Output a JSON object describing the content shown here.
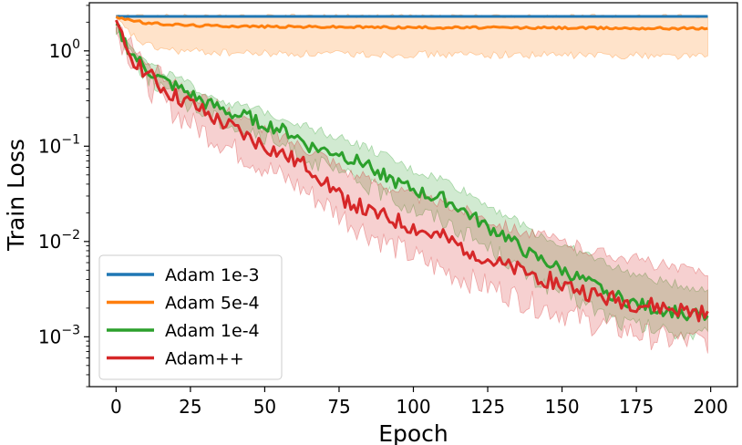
{
  "chart_data": {
    "type": "line",
    "title": "",
    "xlabel": "Epoch",
    "ylabel": "Train Loss",
    "xlim": [
      -9,
      209
    ],
    "ylim": [
      0.0003,
      3.2
    ],
    "yscale": "log",
    "grid": false,
    "legend_position": "lower-left",
    "x_ticks": [
      0,
      25,
      50,
      75,
      100,
      125,
      150,
      175,
      200
    ],
    "y_ticks": [
      {
        "value": 1,
        "base": "10",
        "exp": "0"
      },
      {
        "value": 0.1,
        "base": "10",
        "exp": "−1"
      },
      {
        "value": 0.01,
        "base": "10",
        "exp": "−2"
      },
      {
        "value": 0.001,
        "base": "10",
        "exp": "−3"
      }
    ],
    "series": [
      {
        "name": "Adam 1e-3",
        "color": "#1f77b4",
        "points": [
          [
            0,
            2.3
          ],
          [
            199,
            2.3
          ]
        ],
        "band_low": [
          [
            0,
            2.28
          ],
          [
            199,
            2.28
          ]
        ],
        "band_high": [
          [
            0,
            2.32
          ],
          [
            199,
            2.32
          ]
        ]
      },
      {
        "name": "Adam 5e-4",
        "color": "#ff7f0e",
        "points": [
          [
            0,
            2.28
          ],
          [
            10,
            1.95
          ],
          [
            25,
            1.85
          ],
          [
            50,
            1.8
          ],
          [
            75,
            1.78
          ],
          [
            100,
            1.76
          ],
          [
            125,
            1.75
          ],
          [
            150,
            1.74
          ],
          [
            175,
            1.73
          ],
          [
            199,
            1.72
          ]
        ],
        "band_low": [
          [
            0,
            2.15
          ],
          [
            4,
            1.6
          ],
          [
            8,
            1.25
          ],
          [
            12,
            1.1
          ],
          [
            20,
            1.0
          ],
          [
            40,
            0.95
          ],
          [
            60,
            0.93
          ],
          [
            100,
            0.92
          ],
          [
            150,
            0.9
          ],
          [
            175,
            0.9
          ],
          [
            199,
            0.88
          ]
        ],
        "band_high": [
          [
            0,
            2.32
          ],
          [
            199,
            2.32
          ]
        ]
      },
      {
        "name": "Adam 1e-4",
        "color": "#2ca02c",
        "points": [
          [
            0,
            1.8
          ],
          [
            5,
            0.95
          ],
          [
            10,
            0.65
          ],
          [
            15,
            0.5
          ],
          [
            20,
            0.42
          ],
          [
            25,
            0.35
          ],
          [
            30,
            0.28
          ],
          [
            35,
            0.25
          ],
          [
            40,
            0.21
          ],
          [
            45,
            0.2
          ],
          [
            50,
            0.17
          ],
          [
            55,
            0.15
          ],
          [
            60,
            0.13
          ],
          [
            65,
            0.1
          ],
          [
            70,
            0.09
          ],
          [
            75,
            0.085
          ],
          [
            80,
            0.07
          ],
          [
            85,
            0.065
          ],
          [
            90,
            0.05
          ],
          [
            95,
            0.04
          ],
          [
            100,
            0.035
          ],
          [
            105,
            0.03
          ],
          [
            110,
            0.028
          ],
          [
            115,
            0.023
          ],
          [
            120,
            0.018
          ],
          [
            125,
            0.014
          ],
          [
            130,
            0.012
          ],
          [
            135,
            0.009
          ],
          [
            140,
            0.007
          ],
          [
            145,
            0.006
          ],
          [
            150,
            0.005
          ],
          [
            155,
            0.0042
          ],
          [
            160,
            0.0035
          ],
          [
            165,
            0.003
          ],
          [
            170,
            0.0025
          ],
          [
            175,
            0.0022
          ],
          [
            180,
            0.002
          ],
          [
            185,
            0.0019
          ],
          [
            190,
            0.0018
          ],
          [
            195,
            0.0017
          ],
          [
            199,
            0.0016
          ]
        ],
        "band_low": [
          [
            0,
            1.7
          ],
          [
            10,
            0.55
          ],
          [
            20,
            0.33
          ],
          [
            30,
            0.22
          ],
          [
            40,
            0.16
          ],
          [
            50,
            0.12
          ],
          [
            60,
            0.09
          ],
          [
            70,
            0.06
          ],
          [
            80,
            0.045
          ],
          [
            90,
            0.032
          ],
          [
            100,
            0.022
          ],
          [
            110,
            0.017
          ],
          [
            120,
            0.011
          ],
          [
            130,
            0.007
          ],
          [
            140,
            0.004
          ],
          [
            150,
            0.003
          ],
          [
            160,
            0.002
          ],
          [
            170,
            0.0014
          ],
          [
            180,
            0.0012
          ],
          [
            190,
            0.0011
          ],
          [
            199,
            0.001
          ]
        ],
        "band_high": [
          [
            0,
            1.9
          ],
          [
            10,
            0.75
          ],
          [
            20,
            0.52
          ],
          [
            30,
            0.36
          ],
          [
            40,
            0.27
          ],
          [
            50,
            0.23
          ],
          [
            60,
            0.18
          ],
          [
            70,
            0.14
          ],
          [
            80,
            0.11
          ],
          [
            90,
            0.08
          ],
          [
            100,
            0.055
          ],
          [
            110,
            0.045
          ],
          [
            120,
            0.03
          ],
          [
            130,
            0.02
          ],
          [
            140,
            0.013
          ],
          [
            150,
            0.009
          ],
          [
            160,
            0.007
          ],
          [
            170,
            0.005
          ],
          [
            180,
            0.004
          ],
          [
            190,
            0.0035
          ],
          [
            199,
            0.003
          ]
        ]
      },
      {
        "name": "Adam++",
        "color": "#d62728",
        "points": [
          [
            0,
            1.75
          ],
          [
            5,
            0.9
          ],
          [
            10,
            0.6
          ],
          [
            15,
            0.42
          ],
          [
            20,
            0.33
          ],
          [
            25,
            0.28
          ],
          [
            30,
            0.22
          ],
          [
            35,
            0.18
          ],
          [
            40,
            0.15
          ],
          [
            45,
            0.12
          ],
          [
            50,
            0.1
          ],
          [
            55,
            0.085
          ],
          [
            60,
            0.07
          ],
          [
            65,
            0.06
          ],
          [
            70,
            0.045
          ],
          [
            75,
            0.03
          ],
          [
            80,
            0.025
          ],
          [
            85,
            0.02
          ],
          [
            90,
            0.018
          ],
          [
            95,
            0.016
          ],
          [
            100,
            0.014
          ],
          [
            105,
            0.012
          ],
          [
            110,
            0.011
          ],
          [
            115,
            0.009
          ],
          [
            120,
            0.008
          ],
          [
            125,
            0.0065
          ],
          [
            130,
            0.0055
          ],
          [
            135,
            0.005
          ],
          [
            140,
            0.0045
          ],
          [
            145,
            0.004
          ],
          [
            150,
            0.0035
          ],
          [
            155,
            0.0032
          ],
          [
            160,
            0.0028
          ],
          [
            165,
            0.0025
          ],
          [
            170,
            0.0024
          ],
          [
            175,
            0.0022
          ],
          [
            180,
            0.0021
          ],
          [
            185,
            0.002
          ],
          [
            190,
            0.0019
          ],
          [
            195,
            0.0018
          ],
          [
            199,
            0.0017
          ]
        ],
        "band_low": [
          [
            0,
            1.6
          ],
          [
            10,
            0.45
          ],
          [
            20,
            0.22
          ],
          [
            30,
            0.14
          ],
          [
            40,
            0.09
          ],
          [
            50,
            0.06
          ],
          [
            60,
            0.04
          ],
          [
            70,
            0.025
          ],
          [
            80,
            0.015
          ],
          [
            90,
            0.01
          ],
          [
            100,
            0.007
          ],
          [
            110,
            0.005
          ],
          [
            120,
            0.0038
          ],
          [
            130,
            0.003
          ],
          [
            140,
            0.0022
          ],
          [
            150,
            0.0018
          ],
          [
            160,
            0.0014
          ],
          [
            170,
            0.0012
          ],
          [
            180,
            0.001
          ],
          [
            190,
            0.0009
          ],
          [
            199,
            0.0009
          ]
        ],
        "band_high": [
          [
            0,
            1.9
          ],
          [
            10,
            0.75
          ],
          [
            20,
            0.45
          ],
          [
            30,
            0.3
          ],
          [
            40,
            0.22
          ],
          [
            50,
            0.15
          ],
          [
            60,
            0.11
          ],
          [
            70,
            0.08
          ],
          [
            80,
            0.05
          ],
          [
            90,
            0.04
          ],
          [
            100,
            0.03
          ],
          [
            110,
            0.025
          ],
          [
            120,
            0.02
          ],
          [
            130,
            0.015
          ],
          [
            140,
            0.012
          ],
          [
            150,
            0.01
          ],
          [
            160,
            0.008
          ],
          [
            170,
            0.007
          ],
          [
            180,
            0.006
          ],
          [
            190,
            0.005
          ],
          [
            199,
            0.005
          ]
        ]
      }
    ]
  }
}
